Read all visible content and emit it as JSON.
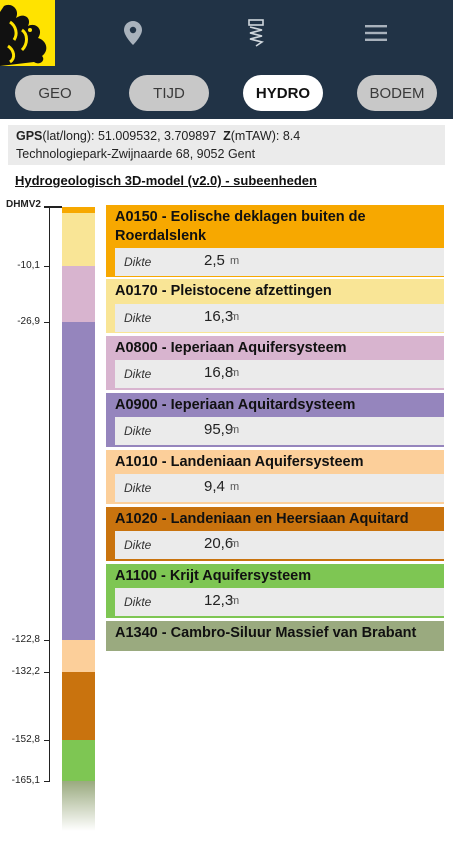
{
  "header": {
    "icons": [
      "map-pin-icon",
      "drill-icon",
      "hamburger-menu-icon"
    ],
    "tabs": [
      {
        "label": "GEO",
        "active": false
      },
      {
        "label": "TIJD",
        "active": false
      },
      {
        "label": "HYDRO",
        "active": true
      },
      {
        "label": "BODEM",
        "active": false
      }
    ]
  },
  "location": {
    "gps_label": "GPS",
    "gps_suffix": "(lat/long): 51.009532, 3.709897",
    "z_label": "Z",
    "z_suffix": "(mTAW): 8.4",
    "address": "Technologiepark-Zwijnaarde 68, 9052 Gent"
  },
  "model_title": "Hydrogeologisch 3D-model (v2.0) - subeenheden",
  "depth_axis": {
    "top_label": "DHMV2",
    "ticks": [
      "-10,1",
      "-26,9",
      "-122,8",
      "-132,2",
      "-152,8",
      "-165,1"
    ]
  },
  "detail_label": "Dikte",
  "unit": "m",
  "layers": [
    {
      "code_name": "A0150 - Eolische deklagen buiten de Roerdalslenk",
      "thickness": "2,5",
      "color": "#f7a800"
    },
    {
      "code_name": "A0170 - Pleistocene afzettingen",
      "thickness": "16,3",
      "color": "#f9e596"
    },
    {
      "code_name": "A0800 - Ieperiaan Aquifersysteem",
      "thickness": "16,8",
      "color": "#d8b4cf"
    },
    {
      "code_name": "A0900 - Ieperiaan Aquitardsysteem",
      "thickness": "95,9",
      "color": "#9585bd"
    },
    {
      "code_name": "A1010 - Landeniaan Aquifersysteem",
      "thickness": "9,4",
      "color": "#fccf9a"
    },
    {
      "code_name": "A1020 - Landeniaan en Heersiaan Aquitard",
      "thickness": "20,6",
      "color": "#c9730e"
    },
    {
      "code_name": "A1100 - Krijt Aquifersysteem",
      "thickness": "12,3",
      "color": "#7ec653"
    },
    {
      "code_name": "A1340 - Cambro-Siluur Massief van Brabant",
      "color": "#9aaa7f"
    }
  ]
}
